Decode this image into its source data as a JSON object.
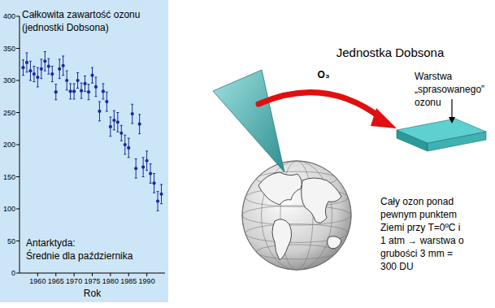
{
  "chart_data": {
    "type": "scatter",
    "title": "Całkowita zawartość ozonu",
    "subtitle": "(jednostki Dobsona)",
    "annotations": [
      "Antarktyda:",
      "Średnie dla października"
    ],
    "x_label": "Rok",
    "x": [
      1956,
      1957,
      1958,
      1959,
      1960,
      1961,
      1962,
      1963,
      1964,
      1965,
      1966,
      1967,
      1968,
      1969,
      1970,
      1971,
      1972,
      1973,
      1974,
      1975,
      1976,
      1977,
      1978,
      1979,
      1980,
      1981,
      1982,
      1983,
      1984,
      1985,
      1986,
      1987,
      1988,
      1989,
      1990,
      1991,
      1992,
      1993,
      1994
    ],
    "values": [
      320,
      328,
      315,
      310,
      305,
      318,
      330,
      322,
      310,
      282,
      318,
      323,
      300,
      283,
      283,
      300,
      284,
      295,
      282,
      308,
      290,
      252,
      283,
      267,
      228,
      238,
      235,
      218,
      200,
      195,
      248,
      163,
      232,
      165,
      175,
      155,
      140,
      112,
      123
    ],
    "errors": [
      12,
      15,
      15,
      12,
      15,
      15,
      15,
      12,
      12,
      12,
      15,
      15,
      15,
      12,
      12,
      12,
      12,
      12,
      12,
      12,
      15,
      15,
      12,
      15,
      15,
      15,
      15,
      12,
      15,
      15,
      15,
      15,
      15,
      15,
      15,
      15,
      15,
      15,
      15
    ],
    "color": "#1a2a9c",
    "marker": "circle",
    "xlim": [
      1955,
      1995
    ],
    "xticks": [
      1960,
      1965,
      1970,
      1975,
      1980,
      1985,
      1990
    ],
    "ylim": [
      0,
      400
    ],
    "yticks": [
      0,
      50,
      100,
      150,
      200,
      250,
      300,
      350,
      400
    ],
    "grid": false
  },
  "diagram": {
    "title": "Jednostka Dobsona",
    "arrow_label": "O₃",
    "slab_label": [
      "Warstwa",
      "„sprasowanego”",
      "ozonu"
    ],
    "caption": [
      "Cały ozon ponad",
      "pewnym punktem",
      "Ziemi przy T=0ºC i",
      "1 atm → warstwa o",
      "grubości 3 mm =",
      "300 DU"
    ]
  }
}
